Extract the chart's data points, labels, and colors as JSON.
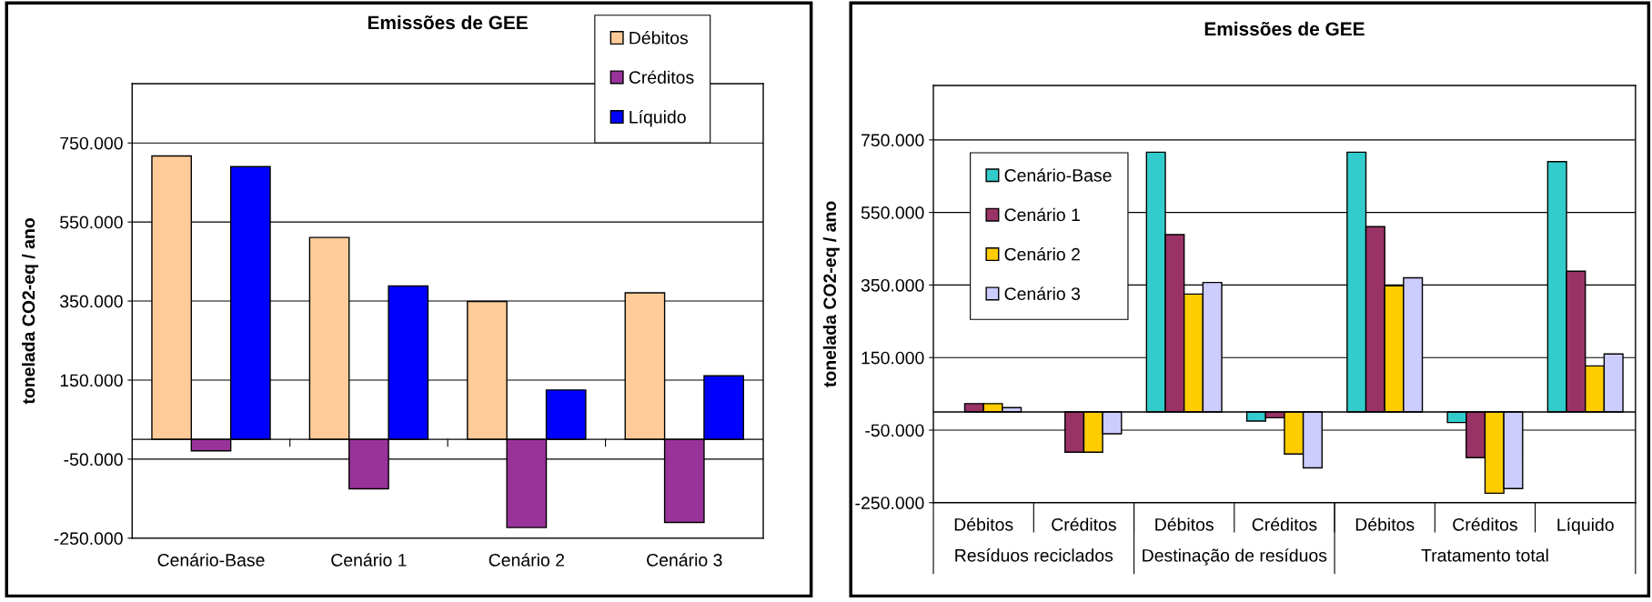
{
  "chart_data": [
    {
      "type": "bar",
      "title": "Emissões de GEE",
      "ylabel": "tonelada CO2-eq / ano",
      "categories": [
        "Cenário-Base",
        "Cenário 1",
        "Cenário 2",
        "Cenário 3"
      ],
      "series": [
        {
          "name": "Débitos",
          "color": "#ffcc99",
          "values": [
            717000,
            511000,
            349000,
            371000
          ]
        },
        {
          "name": "Créditos",
          "color": "#993399",
          "values": [
            -29000,
            -125000,
            -223000,
            -210000
          ]
        },
        {
          "name": "Líquido",
          "color": "#0000ff",
          "values": [
            690000,
            388000,
            125000,
            161000
          ]
        }
      ],
      "ylim": [
        -250000,
        900000
      ],
      "yticks": [
        {
          "value": -250000,
          "label": "-250.000"
        },
        {
          "value": -50000,
          "label": "-50.000"
        },
        {
          "value": 150000,
          "label": "150.000"
        },
        {
          "value": 350000,
          "label": "350.000"
        },
        {
          "value": 550000,
          "label": "550.000"
        },
        {
          "value": 750000,
          "label": "750.000"
        }
      ],
      "grid": "y",
      "legend": "top right"
    },
    {
      "type": "bar",
      "title": "Emissões de GEE",
      "ylabel": "tonelada CO2-eq / ano",
      "categories": [
        "Débitos",
        "Créditos",
        "Débitos",
        "Créditos",
        "Débitos",
        "Créditos",
        "Líquido"
      ],
      "series": [
        {
          "name": "Cenário-Base",
          "color": "#33cccc",
          "values": [
            null,
            null,
            716000,
            -25000,
            716000,
            -29000,
            690000
          ]
        },
        {
          "name": "Cenário 1",
          "color": "#993366",
          "values": [
            23000,
            -111000,
            489000,
            -16000,
            511000,
            -126000,
            388000
          ]
        },
        {
          "name": "Cenário 2",
          "color": "#ffcc00",
          "values": [
            23000,
            -111000,
            325000,
            -116000,
            348000,
            -224000,
            127000
          ]
        },
        {
          "name": "Cenário 3",
          "color": "#ccccff",
          "values": [
            12000,
            -60000,
            357000,
            -154000,
            370000,
            -211000,
            160000
          ]
        }
      ],
      "annotations": [
        "Resíduos reciclados",
        "Destinação de resíduos",
        "Tratamento total"
      ],
      "ylim": [
        -250000,
        900000
      ],
      "yticks": [
        {
          "value": -250000,
          "label": "-250.000"
        },
        {
          "value": -50000,
          "label": "-50.000"
        },
        {
          "value": 150000,
          "label": "150.000"
        },
        {
          "value": 350000,
          "label": "350.000"
        },
        {
          "value": 550000,
          "label": "550.000"
        },
        {
          "value": 750000,
          "label": "750.000"
        }
      ],
      "grid": "y",
      "legend": "top left"
    }
  ]
}
